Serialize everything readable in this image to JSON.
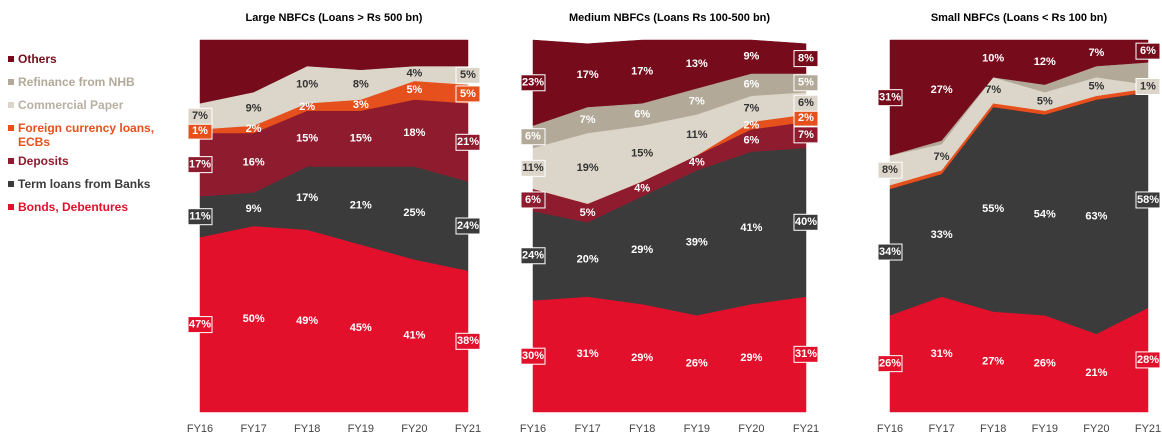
{
  "chart_data": [
    {
      "type": "area",
      "title": "Large NBFCs (Loans > Rs 500 bn)",
      "categories": [
        "FY16",
        "FY17",
        "FY18",
        "FY19",
        "FY20",
        "FY21"
      ],
      "ylim": [
        0,
        100
      ],
      "series": [
        {
          "name": "Bonds, Debentures",
          "color": "#e3102c",
          "values": [
            47,
            50,
            49,
            45,
            41,
            38
          ],
          "value_labels": [
            "47%",
            "50%",
            "49%",
            "45%",
            "41%",
            "38%"
          ]
        },
        {
          "name": "Term loans from Banks",
          "color": "#3b3b3b",
          "values": [
            11,
            9,
            17,
            21,
            25,
            24
          ],
          "value_labels": [
            "11%",
            "9%",
            "17%",
            "21%",
            "25%",
            "24%"
          ]
        },
        {
          "name": "Deposits",
          "color": "#8e1b2e",
          "values": [
            17,
            16,
            15,
            15,
            18,
            21
          ],
          "value_labels": [
            "17%",
            "16%",
            "15%",
            "15%",
            "18%",
            "21%"
          ]
        },
        {
          "name": "Foreign currency loans, ECBs",
          "color": "#e5501c",
          "values": [
            1,
            2,
            2,
            3,
            5,
            5
          ],
          "value_labels": [
            "1%",
            "2%",
            "2%",
            "3%",
            "5%",
            "5%"
          ]
        },
        {
          "name": "Commercial Paper",
          "color": "#dcd5c9",
          "values": [
            7,
            9,
            10,
            8,
            4,
            5
          ],
          "value_labels": [
            "7%",
            "9%",
            "10%",
            "8%",
            "4%",
            "5%"
          ]
        },
        {
          "name": "Refinance from NHB",
          "color": "#b3a999",
          "values": [
            0,
            0,
            0,
            0,
            0,
            0
          ]
        },
        {
          "name": "Others",
          "color": "#760b1c",
          "values": [
            17,
            14,
            7,
            8,
            7,
            7
          ]
        }
      ]
    },
    {
      "type": "area",
      "title": "Medium NBFCs (Loans Rs 100-500 bn)",
      "categories": [
        "FY16",
        "FY17",
        "FY18",
        "FY19",
        "FY20",
        "FY21"
      ],
      "ylim": [
        0,
        100
      ],
      "series": [
        {
          "name": "Bonds, Debentures",
          "color": "#e3102c",
          "values": [
            30,
            31,
            29,
            26,
            29,
            31
          ],
          "value_labels": [
            "30%",
            "31%",
            "29%",
            "26%",
            "29%",
            "31%"
          ]
        },
        {
          "name": "Term loans from Banks",
          "color": "#3b3b3b",
          "values": [
            24,
            20,
            29,
            39,
            41,
            40
          ],
          "value_labels": [
            "24%",
            "20%",
            "29%",
            "39%",
            "41%",
            "40%"
          ]
        },
        {
          "name": "Deposits",
          "color": "#8e1b2e",
          "values": [
            6,
            5,
            4,
            4,
            6,
            7
          ],
          "value_labels": [
            "6%",
            "5%",
            "4%",
            "4%",
            "6%",
            "7%"
          ]
        },
        {
          "name": "Foreign currency loans, ECBs",
          "color": "#e5501c",
          "values": [
            0,
            0,
            0,
            0,
            2,
            2
          ],
          "value_labels": [
            null,
            null,
            null,
            null,
            "2%",
            "2%"
          ]
        },
        {
          "name": "Commercial Paper",
          "color": "#dcd5c9",
          "values": [
            11,
            19,
            15,
            11,
            7,
            6
          ],
          "value_labels": [
            "11%",
            "19%",
            "15%",
            "11%",
            "7%",
            "6%"
          ]
        },
        {
          "name": "Refinance from NHB",
          "color": "#b3a999",
          "values": [
            6,
            7,
            6,
            7,
            6,
            5
          ],
          "value_labels": [
            "6%",
            "7%",
            "6%",
            "7%",
            "6%",
            "5%"
          ]
        },
        {
          "name": "Others",
          "color": "#760b1c",
          "values": [
            23,
            17,
            17,
            13,
            9,
            8
          ],
          "value_labels": [
            "23%",
            "17%",
            "17%",
            "13%",
            "9%",
            "8%"
          ]
        }
      ]
    },
    {
      "type": "area",
      "title": "Small NBFCs (Loans < Rs 100 bn)",
      "categories": [
        "FY16",
        "FY17",
        "FY18",
        "FY19",
        "FY20",
        "FY21"
      ],
      "ylim": [
        0,
        100
      ],
      "series": [
        {
          "name": "Bonds, Debentures",
          "color": "#e3102c",
          "values": [
            26,
            31,
            27,
            26,
            21,
            28
          ],
          "value_labels": [
            "26%",
            "31%",
            "27%",
            "26%",
            "21%",
            "28%"
          ]
        },
        {
          "name": "Term loans from Banks",
          "color": "#3b3b3b",
          "values": [
            34,
            33,
            55,
            54,
            63,
            58
          ],
          "value_labels": [
            "34%",
            "33%",
            "55%",
            "54%",
            "63%",
            "58%"
          ]
        },
        {
          "name": "Deposits",
          "color": "#8e1b2e",
          "values": [
            0,
            0,
            0,
            0,
            0,
            0
          ]
        },
        {
          "name": "Foreign currency loans, ECBs",
          "color": "#e5501c",
          "values": [
            1,
            1,
            1,
            1,
            1,
            1
          ]
        },
        {
          "name": "Commercial Paper",
          "color": "#dcd5c9",
          "values": [
            8,
            7,
            7,
            5,
            5,
            1
          ],
          "value_labels": [
            "8%",
            "7%",
            "7%",
            "5%",
            "5%",
            "1%"
          ]
        },
        {
          "name": "Refinance from NHB",
          "color": "#b3a999",
          "values": [
            0,
            1,
            0,
            2,
            3,
            6
          ]
        },
        {
          "name": "Others",
          "color": "#760b1c",
          "values": [
            31,
            27,
            10,
            12,
            7,
            6
          ],
          "value_labels": [
            "31%",
            "27%",
            "10%",
            "12%",
            "7%",
            "6%"
          ]
        }
      ]
    }
  ]
}
